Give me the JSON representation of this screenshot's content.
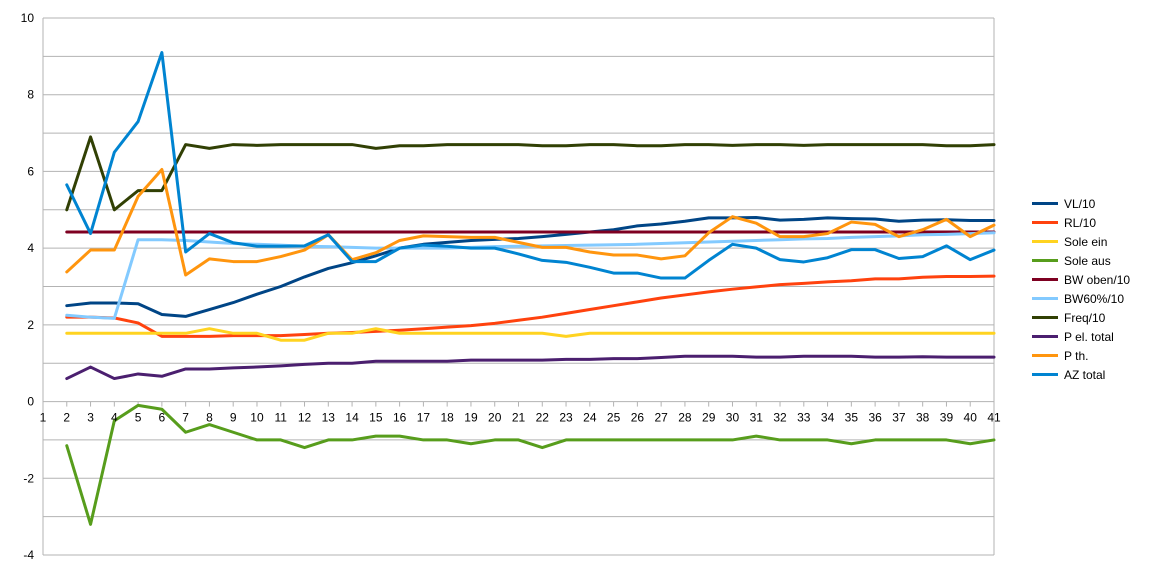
{
  "chart_data": {
    "type": "line",
    "title": "",
    "xlabel": "",
    "ylabel": "",
    "ylim": [
      -4,
      10
    ],
    "yticks": [
      -4,
      -2,
      0,
      2,
      4,
      6,
      8,
      10
    ],
    "xlim": [
      1,
      41
    ],
    "x": [
      2,
      3,
      4,
      5,
      6,
      7,
      8,
      9,
      10,
      11,
      12,
      13,
      14,
      15,
      16,
      17,
      18,
      19,
      20,
      21,
      22,
      23,
      24,
      25,
      26,
      27,
      28,
      29,
      30,
      31,
      32,
      33,
      34,
      35,
      36,
      37,
      38,
      39,
      40,
      41
    ],
    "xtick_labels": [
      "1",
      "2",
      "3",
      "4",
      "5",
      "6",
      "7",
      "8",
      "9",
      "10",
      "11",
      "12",
      "13",
      "14",
      "15",
      "16",
      "17",
      "18",
      "19",
      "20",
      "21",
      "22",
      "23",
      "24",
      "25",
      "26",
      "27",
      "28",
      "29",
      "30",
      "31",
      "32",
      "33",
      "34",
      "35",
      "36",
      "37",
      "38",
      "39",
      "40",
      "41"
    ],
    "grid": "horizontal",
    "legend_position": "right",
    "series": [
      {
        "name": "VL/10",
        "color": "#004586",
        "values": [
          2.5,
          2.57,
          2.57,
          2.55,
          2.27,
          2.22,
          2.4,
          2.58,
          2.8,
          3.0,
          3.25,
          3.47,
          3.62,
          3.8,
          4.0,
          4.1,
          4.15,
          4.2,
          4.23,
          4.25,
          4.3,
          4.36,
          4.42,
          4.48,
          4.58,
          4.63,
          4.7,
          4.79,
          4.79,
          4.8,
          4.73,
          4.75,
          4.79,
          4.77,
          4.76,
          4.7,
          4.73,
          4.74,
          4.72,
          4.72
        ]
      },
      {
        "name": "RL/10",
        "color": "#ff420e",
        "values": [
          2.2,
          2.2,
          2.18,
          2.05,
          1.7,
          1.7,
          1.7,
          1.72,
          1.72,
          1.72,
          1.75,
          1.78,
          1.8,
          1.83,
          1.86,
          1.9,
          1.94,
          1.98,
          2.04,
          2.12,
          2.2,
          2.3,
          2.4,
          2.5,
          2.6,
          2.7,
          2.78,
          2.86,
          2.93,
          2.99,
          3.05,
          3.08,
          3.12,
          3.15,
          3.2,
          3.2,
          3.24,
          3.26,
          3.26,
          3.27
        ]
      },
      {
        "name": "Sole ein",
        "color": "#ffd320",
        "values": [
          1.78,
          1.78,
          1.78,
          1.78,
          1.78,
          1.78,
          1.9,
          1.78,
          1.78,
          1.6,
          1.6,
          1.78,
          1.78,
          1.9,
          1.78,
          1.78,
          1.78,
          1.78,
          1.78,
          1.78,
          1.78,
          1.7,
          1.78,
          1.78,
          1.78,
          1.78,
          1.78,
          1.78,
          1.78,
          1.78,
          1.78,
          1.78,
          1.78,
          1.78,
          1.78,
          1.78,
          1.78,
          1.78,
          1.78,
          1.78
        ]
      },
      {
        "name": "Sole aus",
        "color": "#579d1c",
        "values": [
          -1.15,
          -3.2,
          -0.5,
          -0.1,
          -0.2,
          -0.8,
          -0.6,
          -0.8,
          -1.0,
          -1.0,
          -1.2,
          -1.0,
          -1.0,
          -0.9,
          -0.9,
          -1.0,
          -1.0,
          -1.1,
          -1.0,
          -1.0,
          -1.2,
          -1.0,
          -1.0,
          -1.0,
          -1.0,
          -1.0,
          -1.0,
          -1.0,
          -1.0,
          -0.9,
          -1.0,
          -1.0,
          -1.0,
          -1.1,
          -1.0,
          -1.0,
          -1.0,
          -1.0,
          -1.1,
          -1.0
        ]
      },
      {
        "name": "BW oben/10",
        "color": "#7e0021",
        "values": [
          4.42,
          4.42,
          4.42,
          4.42,
          4.42,
          4.42,
          4.42,
          4.42,
          4.42,
          4.42,
          4.42,
          4.42,
          4.42,
          4.42,
          4.42,
          4.42,
          4.42,
          4.42,
          4.42,
          4.42,
          4.42,
          4.42,
          4.42,
          4.42,
          4.42,
          4.42,
          4.42,
          4.42,
          4.42,
          4.42,
          4.42,
          4.42,
          4.42,
          4.42,
          4.42,
          4.42,
          4.42,
          4.42,
          4.42,
          4.42
        ]
      },
      {
        "name": "BW60%/10",
        "color": "#83caff",
        "values": [
          2.25,
          2.2,
          2.17,
          4.22,
          4.22,
          4.2,
          4.16,
          4.12,
          4.1,
          4.08,
          4.05,
          4.04,
          4.02,
          4.0,
          4.0,
          4.0,
          4.0,
          4.02,
          4.04,
          4.05,
          4.06,
          4.07,
          4.08,
          4.09,
          4.1,
          4.12,
          4.14,
          4.16,
          4.18,
          4.2,
          4.22,
          4.24,
          4.25,
          4.28,
          4.3,
          4.32,
          4.35,
          4.36,
          4.38,
          4.4
        ]
      },
      {
        "name": "Freq/10",
        "color": "#314004",
        "values": [
          5.0,
          6.9,
          5.0,
          5.5,
          5.5,
          6.7,
          6.6,
          6.7,
          6.68,
          6.7,
          6.7,
          6.7,
          6.7,
          6.6,
          6.67,
          6.67,
          6.7,
          6.7,
          6.7,
          6.7,
          6.67,
          6.67,
          6.7,
          6.7,
          6.67,
          6.67,
          6.7,
          6.7,
          6.68,
          6.7,
          6.7,
          6.68,
          6.7,
          6.7,
          6.7,
          6.7,
          6.7,
          6.67,
          6.67,
          6.7
        ]
      },
      {
        "name": "P el. total",
        "color": "#4b1f6f",
        "values": [
          0.6,
          0.9,
          0.6,
          0.72,
          0.66,
          0.85,
          0.85,
          0.88,
          0.9,
          0.93,
          0.97,
          1.0,
          1.0,
          1.05,
          1.05,
          1.05,
          1.05,
          1.08,
          1.08,
          1.08,
          1.08,
          1.1,
          1.1,
          1.12,
          1.12,
          1.15,
          1.18,
          1.18,
          1.18,
          1.16,
          1.16,
          1.18,
          1.18,
          1.18,
          1.16,
          1.16,
          1.17,
          1.16,
          1.16,
          1.16
        ]
      },
      {
        "name": "P th.",
        "color": "#ff950e",
        "values": [
          3.38,
          3.95,
          3.95,
          5.35,
          6.05,
          3.3,
          3.72,
          3.65,
          3.65,
          3.78,
          3.95,
          4.35,
          3.7,
          3.88,
          4.2,
          4.32,
          4.3,
          4.28,
          4.28,
          4.15,
          4.02,
          4.02,
          3.9,
          3.82,
          3.82,
          3.72,
          3.8,
          4.4,
          4.82,
          4.65,
          4.3,
          4.3,
          4.38,
          4.68,
          4.62,
          4.3,
          4.48,
          4.75,
          4.3,
          4.6
        ]
      },
      {
        "name": "AZ total",
        "color": "#0084d1",
        "values": [
          5.65,
          4.38,
          6.5,
          7.3,
          9.1,
          3.9,
          4.38,
          4.14,
          4.05,
          4.05,
          4.06,
          4.35,
          3.65,
          3.65,
          4.0,
          4.08,
          4.05,
          4.0,
          4.0,
          3.85,
          3.68,
          3.63,
          3.5,
          3.35,
          3.35,
          3.22,
          3.22,
          3.68,
          4.1,
          4.0,
          3.7,
          3.64,
          3.75,
          3.96,
          3.96,
          3.73,
          3.78,
          4.06,
          3.7,
          3.95
        ]
      }
    ]
  }
}
